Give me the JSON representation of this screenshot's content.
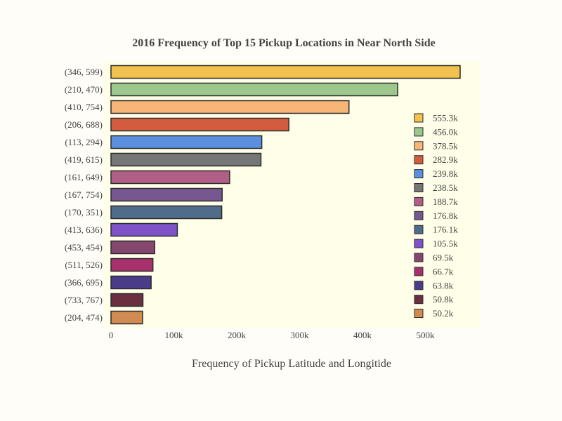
{
  "chart_data": {
    "type": "bar",
    "orientation": "horizontal",
    "title": "2016 Frequency of Top 15 Pickup Locations in Near North Side",
    "xlabel": "Frequency of Pickup Latitude and Longitide",
    "ylabel": "",
    "xlim": [
      0,
      588000
    ],
    "x_ticks": [
      0,
      100000,
      200000,
      300000,
      400000,
      500000
    ],
    "x_tick_labels": [
      "0",
      "100k",
      "200k",
      "300k",
      "400k",
      "500k"
    ],
    "grid": false,
    "legend_position": "right",
    "plot_background": "#fffee8",
    "page_background": "#fffdf8",
    "categories": [
      "(346, 599)",
      "(210, 470)",
      "(410, 754)",
      "(206, 688)",
      "(113, 294)",
      "(419, 615)",
      "(161, 649)",
      "(167, 754)",
      "(170, 351)",
      "(413, 636)",
      "(453, 454)",
      "(511, 526)",
      "(366, 695)",
      "(733, 767)",
      "(204, 474)"
    ],
    "values": [
      555300,
      456000,
      378500,
      282900,
      239800,
      238500,
      188700,
      176800,
      176100,
      105500,
      69500,
      66700,
      63800,
      50800,
      50200
    ],
    "value_labels": [
      "555.3k",
      "456.0k",
      "378.5k",
      "282.9k",
      "239.8k",
      "238.5k",
      "188.7k",
      "176.8k",
      "176.1k",
      "105.5k",
      "69.5k",
      "66.7k",
      "63.8k",
      "50.8k",
      "50.2k"
    ],
    "colors": [
      "#f2c14e",
      "#9dc88d",
      "#f7b577",
      "#d35c3f",
      "#5b8fe0",
      "#767676",
      "#b15f86",
      "#765790",
      "#4f6d8a",
      "#7f52c9",
      "#86476e",
      "#a8306c",
      "#4b3c8a",
      "#6b2f40",
      "#d08a52"
    ]
  }
}
